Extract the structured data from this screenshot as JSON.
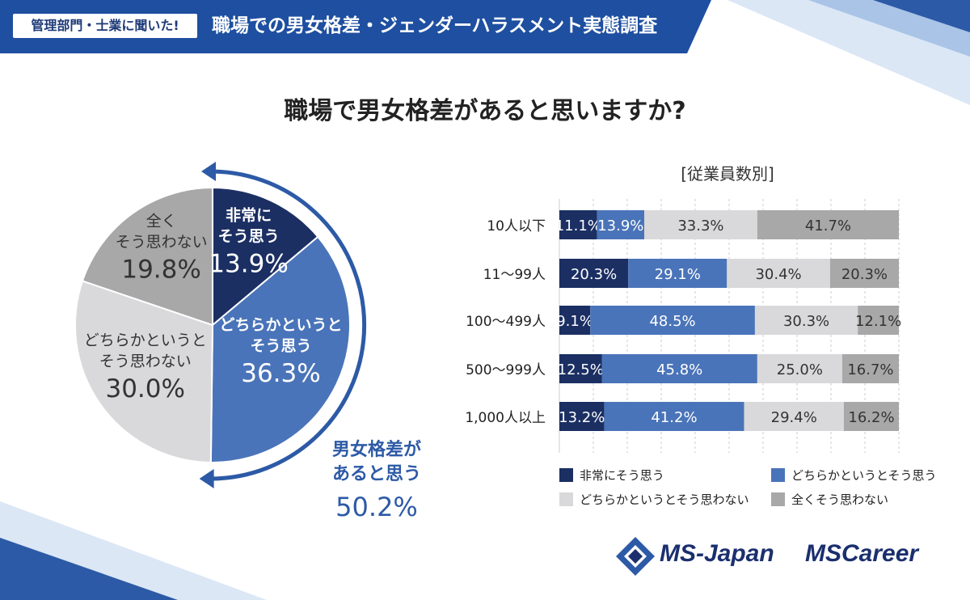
{
  "header": {
    "tag": "管理部門・士業に聞いた!",
    "title": "職場での男女格差・ジェンダーハラスメント実態調査"
  },
  "question": "職場で男女格差があると思いますか?",
  "colors": {
    "header_blue": "#1e4fa0",
    "dark_navy": "#1b2f63",
    "mid_blue": "#4a74b9",
    "light_gray": "#d9d9db",
    "mid_gray": "#a8a8a8",
    "arrow_blue": "#2d5aa6"
  },
  "pie": {
    "slices": [
      {
        "name": "非常に",
        "name2": "そう思う",
        "value": 13.9,
        "label": "13.9%",
        "color": "#1b2f63",
        "text_color": "#ffffff"
      },
      {
        "name": "どちらかというと",
        "name2": "そう思う",
        "value": 36.3,
        "label": "36.3%",
        "color": "#4a74b9",
        "text_color": "#ffffff"
      },
      {
        "name": "どちらかというと",
        "name2": "そう思わない",
        "value": 30.0,
        "label": "30.0%",
        "color": "#d9d9db",
        "text_color": "#333333"
      },
      {
        "name": "全く",
        "name2": "そう思わない",
        "value": 19.8,
        "label": "19.8%",
        "color": "#a8a8a8",
        "text_color": "#333333"
      }
    ],
    "summary": {
      "line1": "男女格差が",
      "line2": "あると思う",
      "value": "50.2%"
    }
  },
  "chart_data": {
    "type": "bar",
    "orientation": "horizontal",
    "stacked": true,
    "title": "[従業員数別]",
    "categories": [
      "10人以下",
      "11〜99人",
      "100〜499人",
      "500〜999人",
      "1,000人以上"
    ],
    "series": [
      {
        "name": "非常にそう思う",
        "color": "#1b2f63",
        "values": [
          11.1,
          20.3,
          9.1,
          12.5,
          13.2
        ],
        "labels": [
          "11.1%",
          "20.3%",
          "9.1%",
          "12.5%",
          "13.2%"
        ]
      },
      {
        "name": "どちらかというとそう思う",
        "color": "#4a74b9",
        "values": [
          13.9,
          29.1,
          48.5,
          45.8,
          41.2
        ],
        "labels": [
          "13.9%",
          "29.1%",
          "48.5%",
          "45.8%",
          "41.2%"
        ]
      },
      {
        "name": "どちらかというとそう思わない",
        "color": "#d9d9db",
        "values": [
          33.3,
          30.4,
          30.3,
          25.0,
          29.4
        ],
        "labels": [
          "33.3%",
          "30.4%",
          "30.3%",
          "25.0%",
          "29.4%"
        ]
      },
      {
        "name": "全くそう思わない",
        "color": "#a8a8a8",
        "values": [
          41.7,
          20.3,
          12.1,
          16.7,
          16.2
        ],
        "labels": [
          "41.7%",
          "20.3%",
          "12.1%",
          "16.7%",
          "16.2%"
        ]
      }
    ],
    "xlim": [
      0,
      100
    ],
    "grid": true,
    "legend_position": "bottom"
  },
  "logos": {
    "ms_japan": "MS-Japan",
    "ms_career": "MSCareer"
  }
}
